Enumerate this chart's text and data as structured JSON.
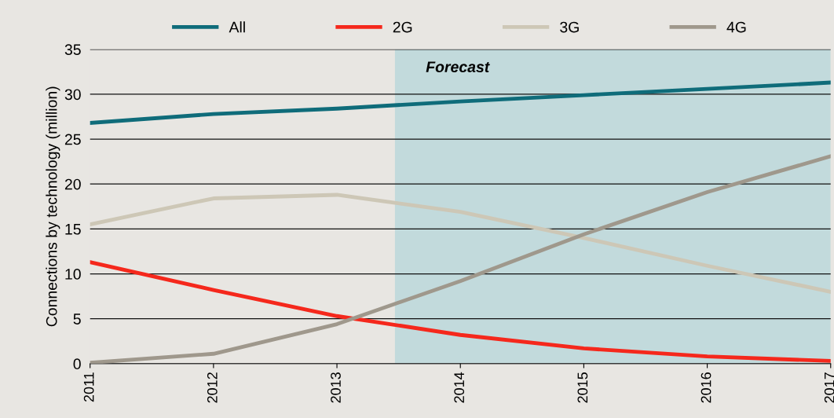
{
  "chart_data": {
    "type": "line",
    "ylabel": "Connections by technology (million)",
    "x": [
      2011,
      2012,
      2013,
      2014,
      2015,
      2016,
      2017
    ],
    "xlim": [
      2011,
      2017
    ],
    "xticks": [
      2011,
      2012,
      2013,
      2014,
      2015,
      2016,
      2017
    ],
    "ylim": [
      0,
      35
    ],
    "yticks": [
      0,
      5,
      10,
      15,
      20,
      25,
      30,
      35
    ],
    "grid": "y",
    "legend": "top",
    "marker": "none",
    "line_style": "solid",
    "bands": [
      {
        "axis": "x",
        "from": 2013.47,
        "to": 2017,
        "label": "Forecast",
        "color": "#c2dadc"
      }
    ],
    "series": [
      {
        "name": "All",
        "color": "#0f6c7a",
        "values": [
          26.8,
          27.8,
          28.4,
          29.2,
          29.9,
          30.6,
          31.3
        ]
      },
      {
        "name": "2G",
        "color": "#f5281c",
        "values": [
          11.3,
          8.2,
          5.3,
          3.2,
          1.7,
          0.8,
          0.3
        ]
      },
      {
        "name": "3G",
        "color": "#cdc7b6",
        "values": [
          15.5,
          18.4,
          18.8,
          16.9,
          14.0,
          10.9,
          8.0
        ]
      },
      {
        "name": "4G",
        "color": "#9f988c",
        "values": [
          0.1,
          1.1,
          4.4,
          9.2,
          14.4,
          19.1,
          23.1
        ]
      }
    ]
  }
}
